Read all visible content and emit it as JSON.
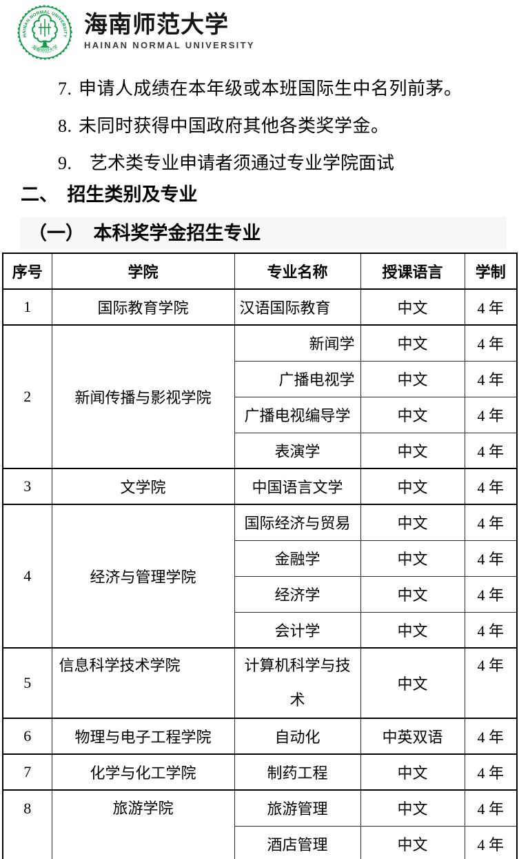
{
  "logo": {
    "seal_ring_text": "HAINAN NORMAL UNIVERSITY",
    "seal_bottom_text": "海南师范大学",
    "university_name_zh": "海南师范大学",
    "university_name_en": "HAINAN NORMAL UNIVERSITY"
  },
  "colors": {
    "seal_green": "#179a49",
    "heading_band": "#f7f7f7",
    "text": "#000000"
  },
  "list_items": [
    {
      "number": "7.",
      "text": "申请人成绩在本年级或本班国际生中名列前茅。"
    },
    {
      "number": "8.",
      "text": "未同时获得中国政府其他各类奖学金。"
    },
    {
      "number": "9.",
      "text": "艺术类专业申请者须通过专业学院面试"
    }
  ],
  "section_heading": "二、　招生类别及专业",
  "sub_heading": "（一）　本科奖学金招生专业",
  "table": {
    "headers": [
      "序号",
      "学院",
      "专业名称",
      "授课语言",
      "学制"
    ],
    "groups": [
      {
        "no": "1",
        "college": "国际教育学院",
        "majors": [
          {
            "major": "汉语国际教育",
            "language": "中文",
            "years": "4 年"
          }
        ]
      },
      {
        "no": "2",
        "college": "新闻传播与影视学院",
        "majors": [
          {
            "major": "新闻学",
            "language": "中文",
            "years": "4 年"
          },
          {
            "major": "广播电视学",
            "language": "中文",
            "years": "4 年"
          },
          {
            "major": "广播电视编导学",
            "language": "中文",
            "years": "4 年"
          },
          {
            "major": "表演学",
            "language": "中文",
            "years": "4 年"
          }
        ]
      },
      {
        "no": "3",
        "college": "文学院",
        "majors": [
          {
            "major": "中国语言文学",
            "language": "中文",
            "years": "4 年"
          }
        ]
      },
      {
        "no": "4",
        "college": "经济与管理学院",
        "majors": [
          {
            "major": "国际经济与贸易",
            "language": "中文",
            "years": "4 年"
          },
          {
            "major": "金融学",
            "language": "中文",
            "years": "4 年"
          },
          {
            "major": "经济学",
            "language": "中文",
            "years": "4 年"
          },
          {
            "major": "会计学",
            "language": "中文",
            "years": "4 年"
          }
        ]
      },
      {
        "no": "5",
        "college": "信息科学技术学院",
        "majors": [
          {
            "major": "计算机科学与技术",
            "language": "中文",
            "years": "4 年"
          }
        ]
      },
      {
        "no": "6",
        "college": "物理与电子工程学院",
        "majors": [
          {
            "major": "自动化",
            "language": "中英双语",
            "years": "4 年"
          }
        ]
      },
      {
        "no": "7",
        "college": "化学与化工学院",
        "majors": [
          {
            "major": "制药工程",
            "language": "中文",
            "years": "4 年"
          }
        ]
      },
      {
        "no": "8",
        "college": "旅游学院",
        "majors": [
          {
            "major": "旅游管理",
            "language": "中文",
            "years": "4 年"
          },
          {
            "major": "酒店管理",
            "language": "中文",
            "years": "4 年"
          }
        ]
      }
    ]
  }
}
